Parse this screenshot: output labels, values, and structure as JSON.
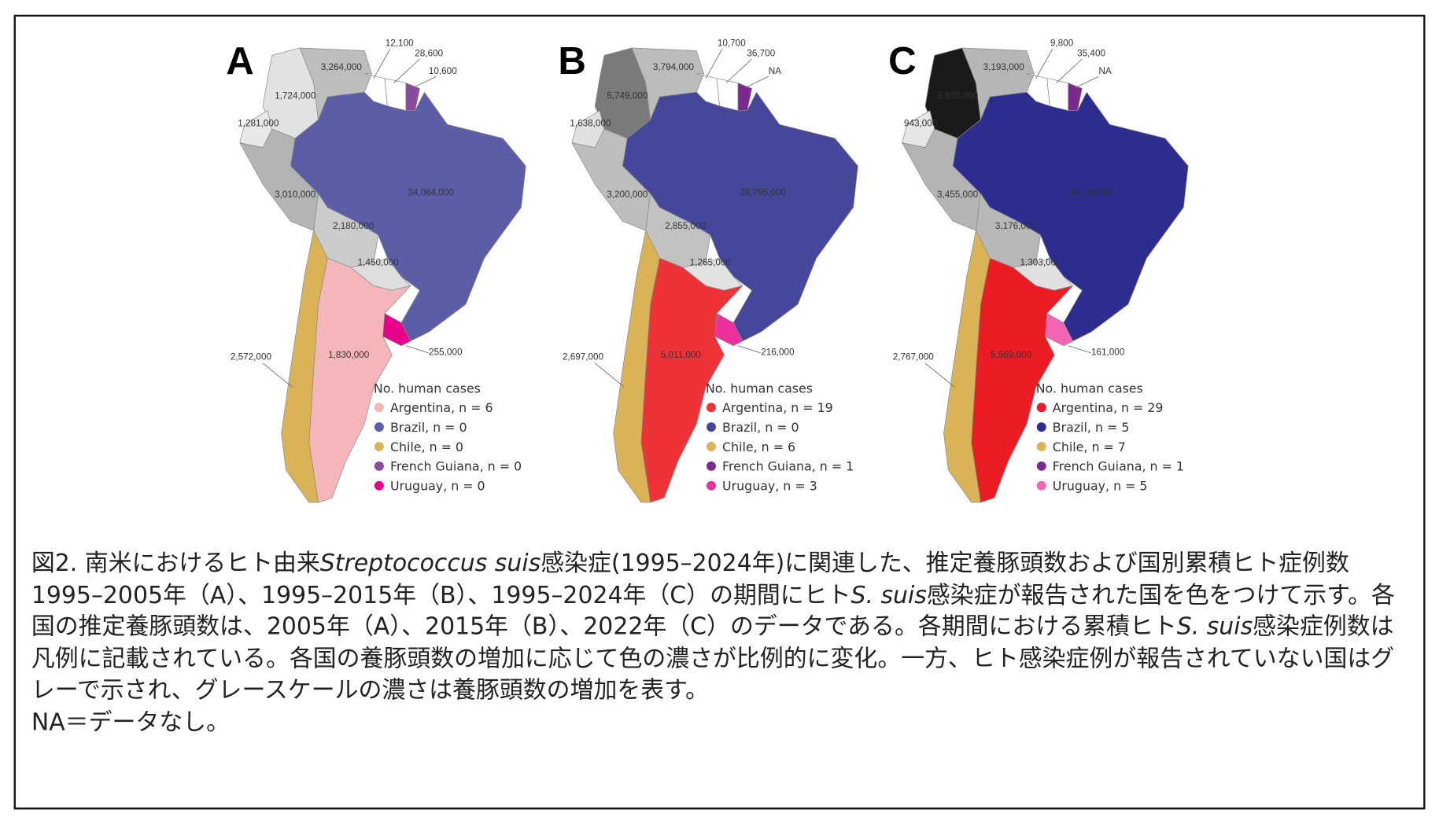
{
  "panels": [
    {
      "letter": "A",
      "values": {
        "venezuela": "3,264,000",
        "colombia": "1,724,000",
        "ecuador": "1,281,000",
        "peru": "3,010,000",
        "brazil": "34,064,000",
        "bolivia": "2,180,000",
        "paraguay": "1,450,000",
        "argentina": "1,830,000",
        "chile": "2,572,000",
        "uruguay": "255,000",
        "guyana": "12,100",
        "suriname": "28,600",
        "french_guiana": "10,600"
      },
      "colors": {
        "venezuela": "#bdbdbd",
        "colombia": "#e2e2e2",
        "ecuador": "#e8e8e8",
        "peru": "#b4b4b4",
        "brazil": "#5b5ea6",
        "bolivia": "#cbcbcb",
        "paraguay": "#dedede",
        "argentina": "#f5b6b9",
        "chile": "#d9b356",
        "uruguay": "#e8008a",
        "guyana": "#ffffff",
        "suriname": "#ffffff",
        "french_guiana": "#8b4a9c"
      },
      "legend": {
        "title": "No. human cases",
        "items": [
          {
            "label": "Argentina, n = 6",
            "color": "#f5b6b9"
          },
          {
            "label": "Brazil, n = 0",
            "color": "#5b5ea6"
          },
          {
            "label": "Chile, n = 0",
            "color": "#d9b356"
          },
          {
            "label": "French Guiana, n = 0",
            "color": "#8b4a9c"
          },
          {
            "label": "Uruguay, n = 0",
            "color": "#e8008a"
          }
        ]
      }
    },
    {
      "letter": "B",
      "values": {
        "venezuela": "3,794,000",
        "colombia": "5,749,000",
        "ecuador": "1,638,000",
        "peru": "3,200,000",
        "brazil": "39,795,000",
        "bolivia": "2,855,000",
        "paraguay": "1,265,000",
        "argentina": "5,011,000",
        "chile": "2,697,000",
        "uruguay": "216,000",
        "guyana": "10,700",
        "suriname": "36,700",
        "french_guiana": "NA"
      },
      "colors": {
        "venezuela": "#bcbcbc",
        "colombia": "#7a7a7a",
        "ecuador": "#e0e0e0",
        "peru": "#bdbdbd",
        "brazil": "#44479a",
        "bolivia": "#c2c2c2",
        "paraguay": "#e2e2e2",
        "argentina": "#ee3338",
        "chile": "#d9b356",
        "uruguay": "#ee2fa0",
        "guyana": "#ffffff",
        "suriname": "#ffffff",
        "french_guiana": "#7a2a8e"
      },
      "legend": {
        "title": "No. human cases",
        "items": [
          {
            "label": "Argentina, n = 19",
            "color": "#ee3338"
          },
          {
            "label": "Brazil, n = 0",
            "color": "#44479a"
          },
          {
            "label": "Chile, n = 6",
            "color": "#d9b356"
          },
          {
            "label": "French Guiana, n = 1",
            "color": "#7a2a8e"
          },
          {
            "label": "Uruguay, n = 3",
            "color": "#ee2fa0"
          }
        ]
      }
    },
    {
      "letter": "C",
      "values": {
        "venezuela": "3,193,000",
        "colombia": "9,658,000",
        "ecuador": "943,000",
        "peru": "3,455,000",
        "brazil": "44,394,000",
        "bolivia": "3,176,000",
        "paraguay": "1,303,000",
        "argentina": "5,569,000",
        "chile": "2,767,000",
        "uruguay": "161,000",
        "guyana": "9,800",
        "suriname": "35,400",
        "french_guiana": "NA"
      },
      "colors": {
        "venezuela": "#b6b6b6",
        "colombia": "#1a1a1a",
        "ecuador": "#e6e6e6",
        "peru": "#b4b4b4",
        "brazil": "#2b2e8e",
        "bolivia": "#b8b8b8",
        "paraguay": "#e0e0e0",
        "argentina": "#ec1c24",
        "chile": "#d9b356",
        "uruguay": "#f264b4",
        "guyana": "#ffffff",
        "suriname": "#ffffff",
        "french_guiana": "#7a2a8e"
      },
      "legend": {
        "title": "No. human cases",
        "items": [
          {
            "label": "Argentina, n = 29",
            "color": "#ec1c24"
          },
          {
            "label": "Brazil, n = 5",
            "color": "#2b2e8e"
          },
          {
            "label": "Chile, n = 7",
            "color": "#d9b356"
          },
          {
            "label": "French Guiana, n = 1",
            "color": "#7a2a8e"
          },
          {
            "label": "Uruguay, n = 5",
            "color": "#f264b4"
          }
        ]
      }
    }
  ],
  "caption": {
    "title": [
      "図2. 南米におけるヒト由来",
      "Streptococcus suis",
      "感染症(1995–2024年)に関連した、推定養豚頭数および国別累積ヒト症例数"
    ],
    "body1": [
      "1995–2005年（A）、1995–2015年（B）、1995–2024年（C）の期間にヒト",
      "S. suis",
      "感染症が報告された国を色をつけて示す。各国の推定養豚頭数は、2005年（A）、2015年（B）、2022年（C）のデータである。各期間における累積ヒト",
      "S. suis",
      "感染症例数は凡例に記載されている。各国の養豚頭数の増加に応じて色の濃さが比例的に変化。一方、ヒト感染症例が報告されていない国はグレーで示され、グレースケールの濃さは養豚頭数の増加を表す。"
    ],
    "note": "NA＝データなし。"
  }
}
